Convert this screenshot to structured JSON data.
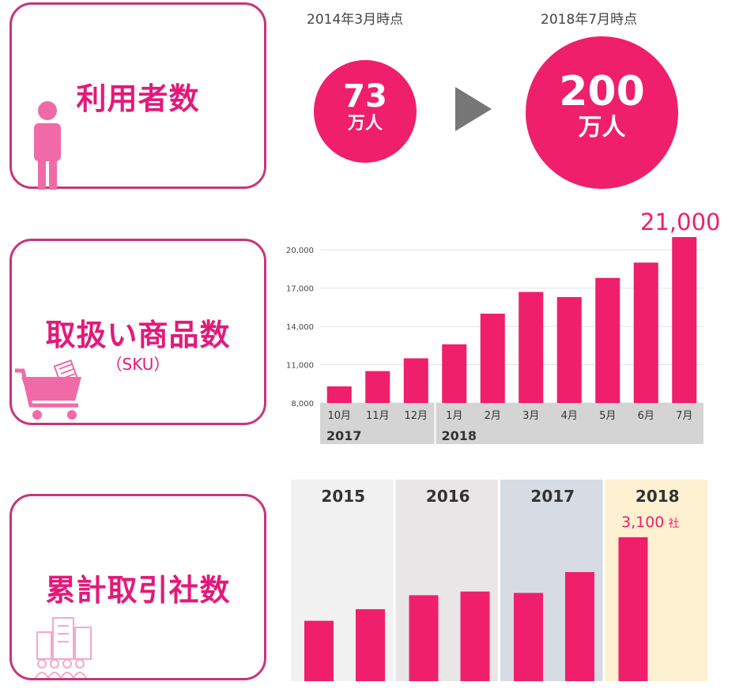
{
  "users": {
    "title": "利用者数",
    "before": {
      "date": "2014年3月時点",
      "value": "73",
      "unit": "万人"
    },
    "after": {
      "date": "2018年7月時点",
      "value": "200",
      "unit": "万人"
    }
  },
  "products": {
    "title": "取扱い商品数",
    "subtitle": "（SKU）",
    "highlight": "21,000"
  },
  "companies": {
    "title": "累計取引社数",
    "highlight_value": "3,100",
    "highlight_unit": "社"
  },
  "colors": {
    "accent": "#ef1f6b",
    "border": "#c8357a",
    "icon": "#f06aa8"
  },
  "chart_data": [
    {
      "type": "bar",
      "categories": [
        "10月",
        "11月",
        "12月",
        "1月",
        "2月",
        "3月",
        "4月",
        "5月",
        "6月",
        "7月"
      ],
      "groups": [
        {
          "label": "2017",
          "from": 0,
          "to": 2
        },
        {
          "label": "2018",
          "from": 3,
          "to": 9
        }
      ],
      "values": [
        9300,
        10500,
        11500,
        12600,
        15000,
        16700,
        16300,
        17800,
        19000,
        21000
      ],
      "yticks": [
        8000,
        11000,
        14000,
        17000,
        20000
      ],
      "ytick_labels": [
        "8,000",
        "11,000",
        "14,000",
        "17,000",
        "20,000"
      ],
      "ylim": [
        8000,
        21000
      ],
      "grid": true
    },
    {
      "type": "bar",
      "year_panels": [
        "2015",
        "2016",
        "2017",
        "2018"
      ],
      "values": [
        1300,
        1550,
        1850,
        1930,
        1900,
        2350,
        3100
      ],
      "panel_of_bar": [
        0,
        0,
        1,
        1,
        2,
        2,
        3
      ],
      "ylim": [
        0,
        4000
      ]
    }
  ]
}
